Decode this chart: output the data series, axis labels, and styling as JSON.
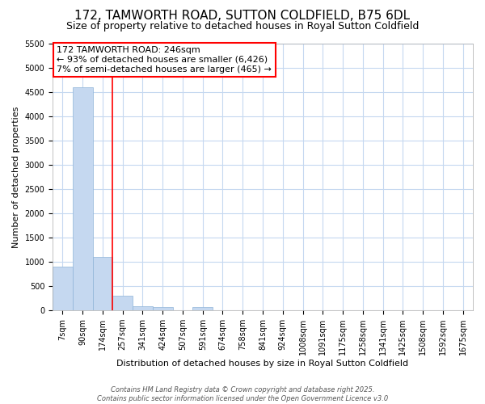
{
  "title": "172, TAMWORTH ROAD, SUTTON COLDFIELD, B75 6DL",
  "subtitle": "Size of property relative to detached houses in Royal Sutton Coldfield",
  "xlabel": "Distribution of detached houses by size in Royal Sutton Coldfield",
  "ylabel": "Number of detached properties",
  "categories": [
    "7sqm",
    "90sqm",
    "174sqm",
    "257sqm",
    "341sqm",
    "424sqm",
    "507sqm",
    "591sqm",
    "674sqm",
    "758sqm",
    "841sqm",
    "924sqm",
    "1008sqm",
    "1091sqm",
    "1175sqm",
    "1258sqm",
    "1341sqm",
    "1425sqm",
    "1508sqm",
    "1592sqm",
    "1675sqm"
  ],
  "values": [
    900,
    4600,
    1100,
    300,
    90,
    65,
    0,
    65,
    0,
    0,
    0,
    0,
    0,
    0,
    0,
    0,
    0,
    0,
    0,
    0,
    0
  ],
  "bar_color": "#c5d8f0",
  "bar_edge_color": "#8fb4d8",
  "red_line_x": 2.5,
  "annotation_line1": "172 TAMWORTH ROAD: 246sqm",
  "annotation_line2": "← 93% of detached houses are smaller (6,426)",
  "annotation_line3": "7% of semi-detached houses are larger (465) →",
  "ylim": [
    0,
    5500
  ],
  "yticks": [
    0,
    500,
    1000,
    1500,
    2000,
    2500,
    3000,
    3500,
    4000,
    4500,
    5000,
    5500
  ],
  "fig_bg_color": "#ffffff",
  "plot_bg_color": "#ffffff",
  "grid_color": "#c5d8f0",
  "footer_line1": "Contains HM Land Registry data © Crown copyright and database right 2025.",
  "footer_line2": "Contains public sector information licensed under the Open Government Licence v3.0",
  "title_fontsize": 11,
  "subtitle_fontsize": 9,
  "xlabel_fontsize": 8,
  "ylabel_fontsize": 8,
  "tick_fontsize": 7,
  "annotation_fontsize": 8
}
